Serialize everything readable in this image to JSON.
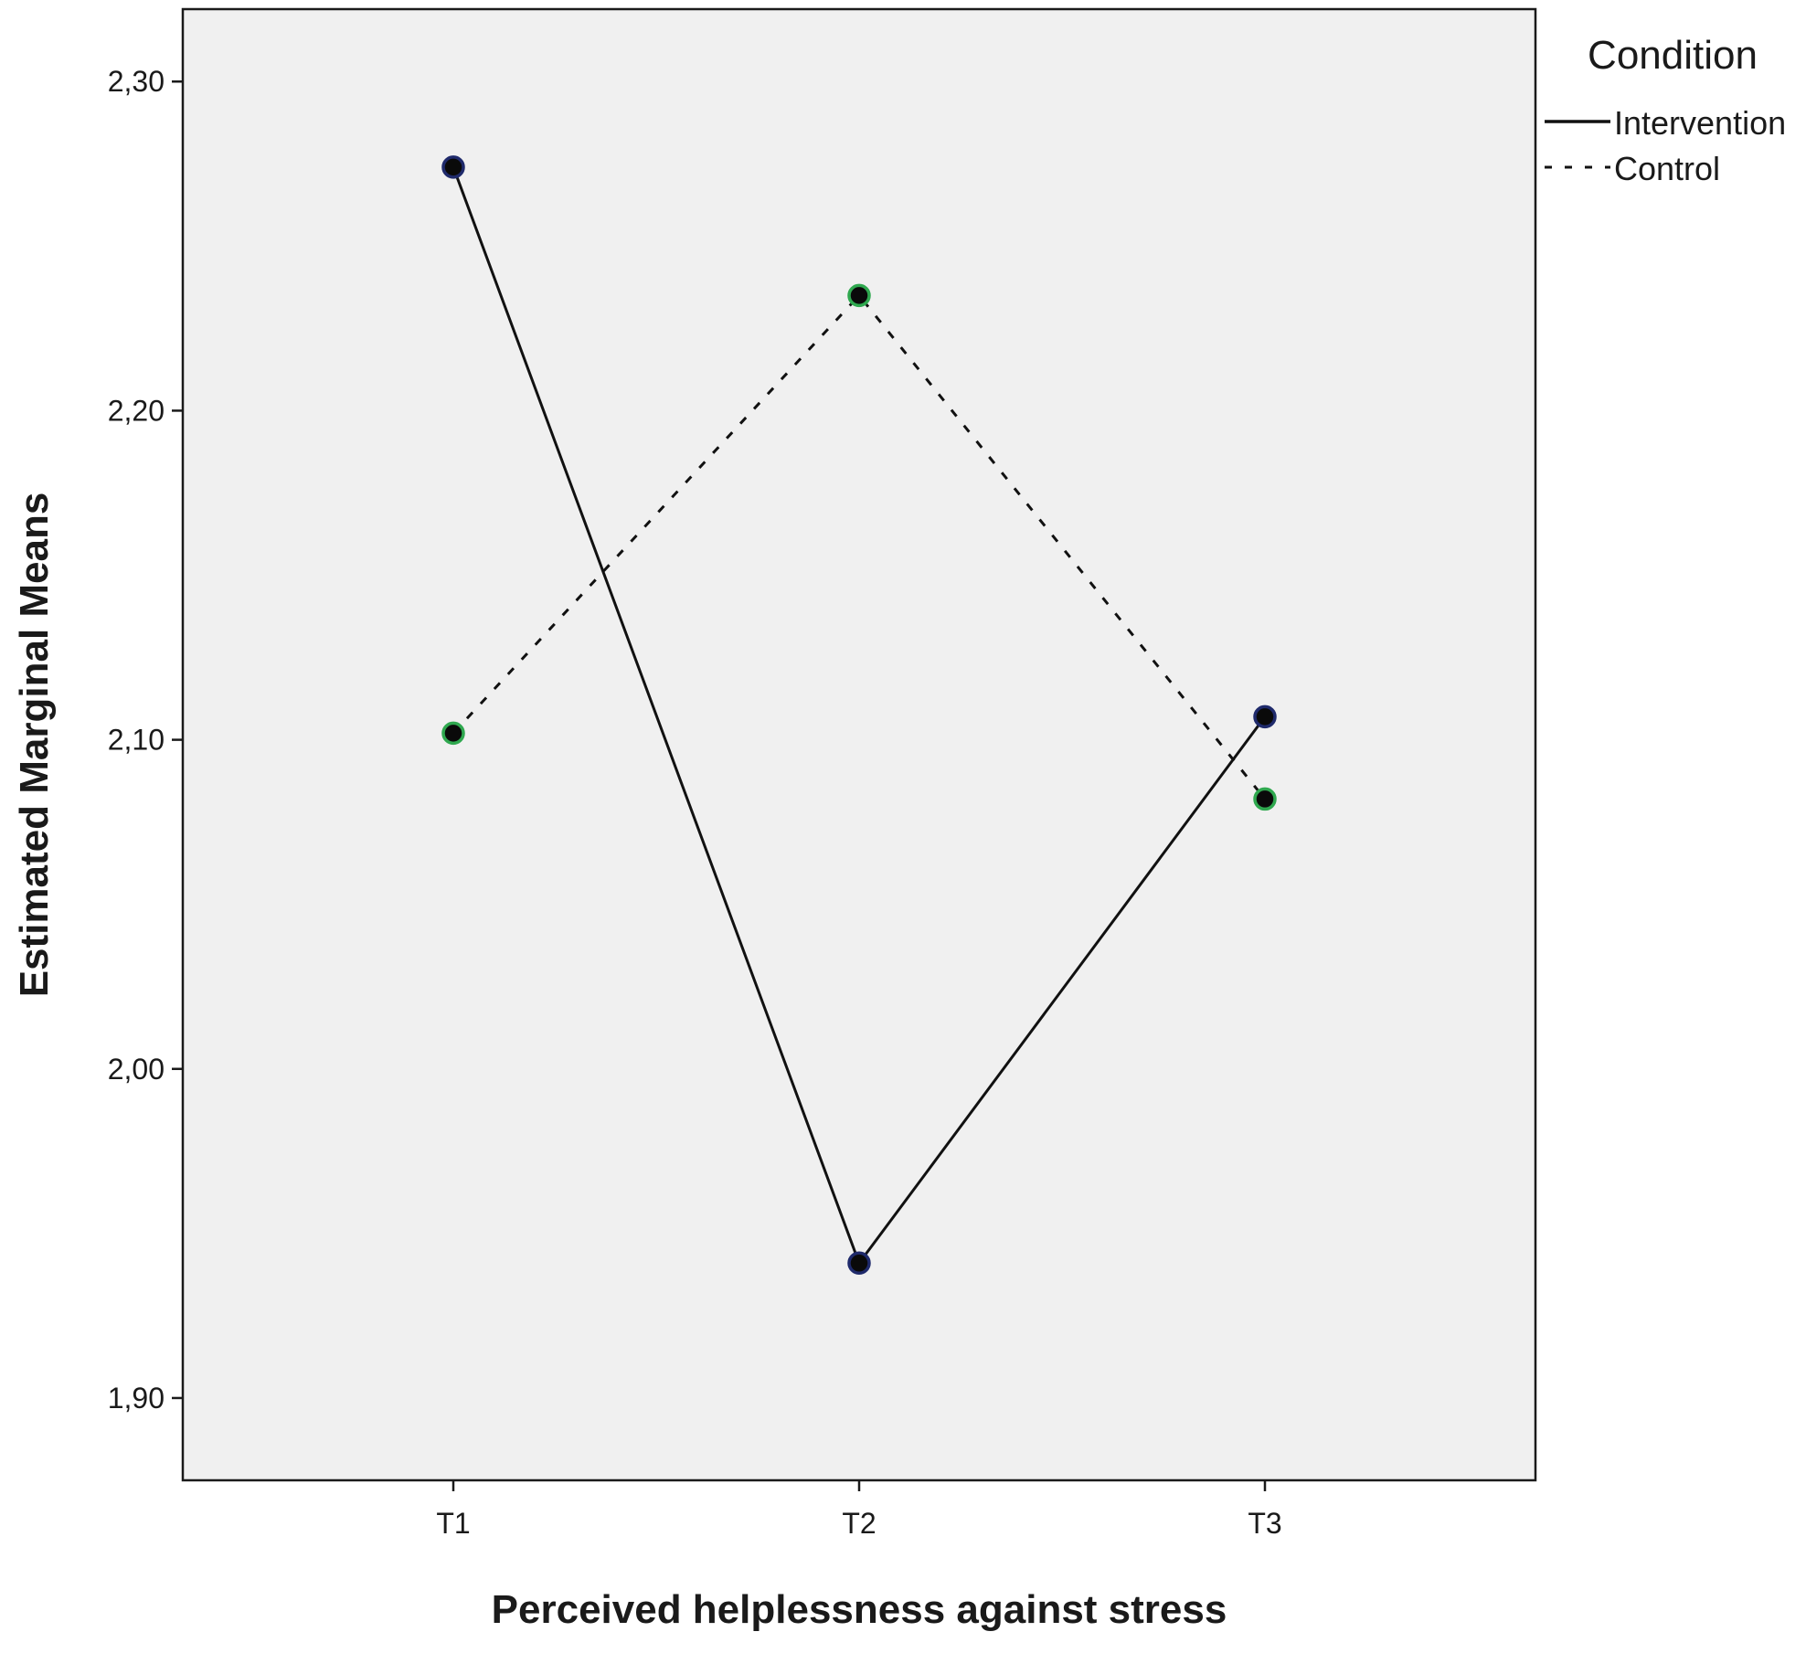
{
  "chart_data": {
    "type": "line",
    "title": "",
    "xlabel": "Perceived helplessness against stress",
    "ylabel": "Estimated Marginal Means",
    "categories": [
      "T1",
      "T2",
      "T3"
    ],
    "y_ticks": [
      "2,30",
      "2,20",
      "2,10",
      "2,00",
      "1,90"
    ],
    "ylim": [
      1.875,
      2.322
    ],
    "grid": false,
    "legend": {
      "title": "Condition",
      "placement": "right"
    },
    "series": [
      {
        "name": "Intervention",
        "line_style": "solid",
        "marker_color": "#1f2a6b",
        "values": [
          2.274,
          1.941,
          2.107
        ]
      },
      {
        "name": "Control",
        "line_style": "dashed",
        "marker_color": "#2fa84f",
        "values": [
          2.102,
          2.235,
          2.082
        ]
      }
    ],
    "colors": {
      "plot_background": "#f0f0f0",
      "axis": "#1a1a1a",
      "line": "#111111"
    }
  }
}
